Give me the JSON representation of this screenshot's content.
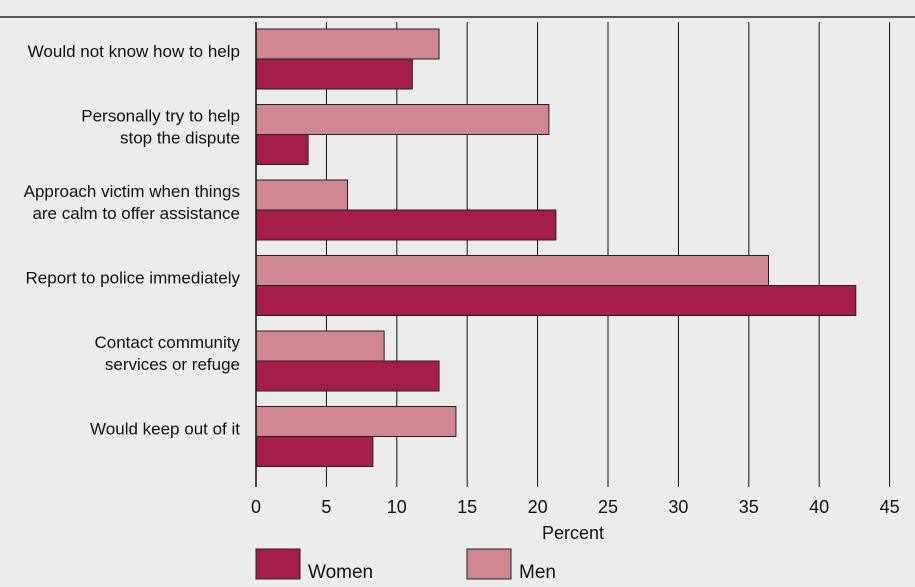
{
  "chart_data": {
    "type": "bar",
    "orientation": "horizontal",
    "title": "",
    "categories": [
      [
        "Would not know how to help"
      ],
      [
        "Personally try to help",
        "stop the dispute"
      ],
      [
        "Approach victim when things",
        "are calm to offer assistance"
      ],
      [
        "Report to police immediately"
      ],
      [
        "Contact community",
        "services or refuge"
      ],
      [
        "Would keep out of it"
      ]
    ],
    "series": [
      {
        "name": "Men",
        "color": "#cf8791",
        "values": [
          13.0,
          20.8,
          6.5,
          36.4,
          9.1,
          14.2
        ]
      },
      {
        "name": "Women",
        "color": "#a51e4a",
        "values": [
          11.1,
          3.7,
          21.3,
          42.6,
          13.0,
          8.3
        ]
      }
    ],
    "xlabel": "Percent",
    "ylabel": "",
    "xlim": [
      0,
      45
    ],
    "xticks": [
      0,
      5,
      10,
      15,
      20,
      25,
      30,
      35,
      40,
      45
    ],
    "grid": true,
    "legend": {
      "placement": "bottom",
      "order": [
        "Women",
        "Men"
      ]
    }
  }
}
